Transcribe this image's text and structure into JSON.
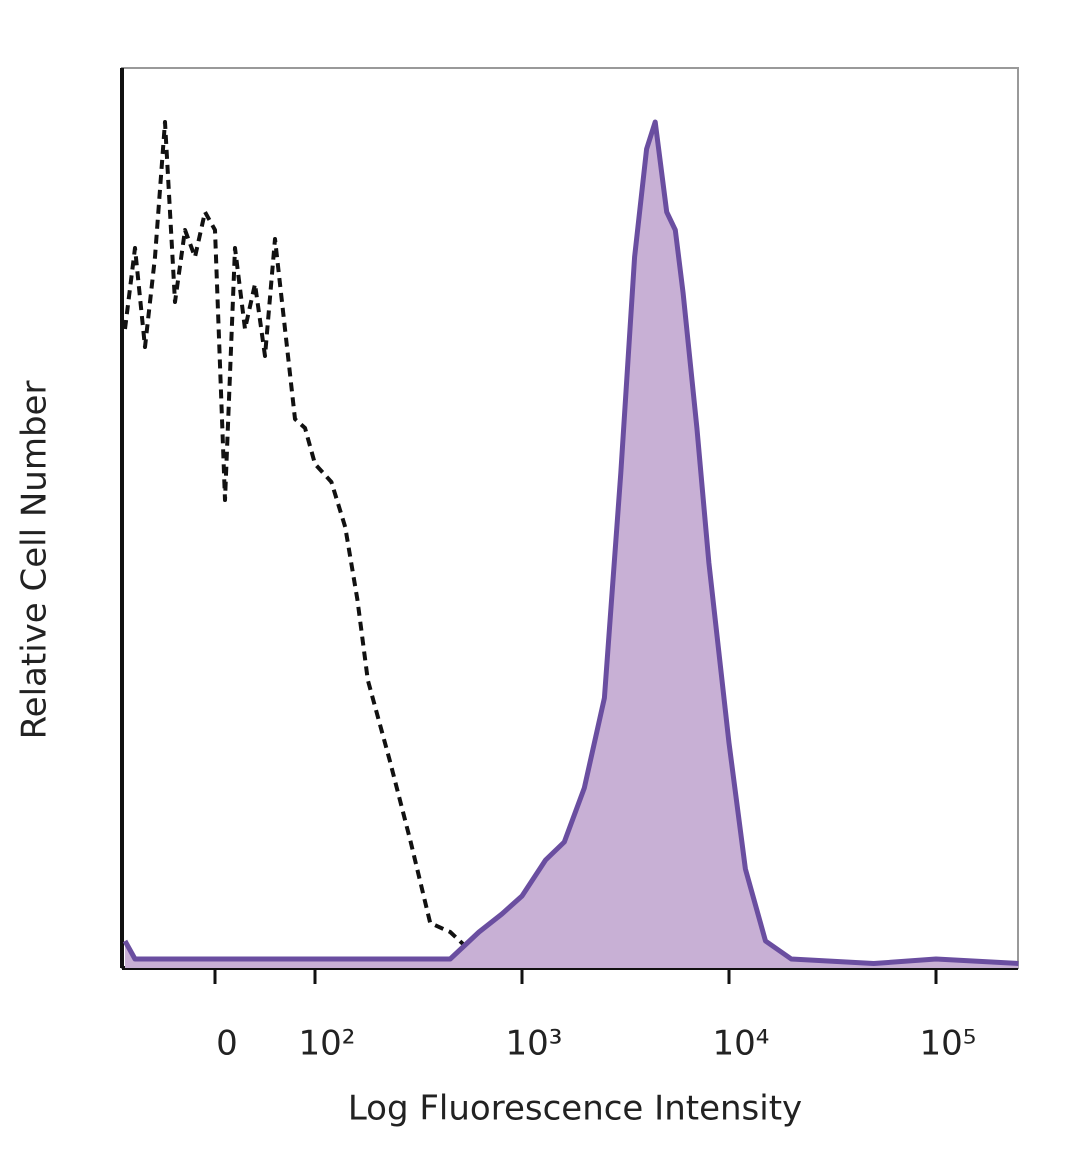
{
  "chart_data": {
    "type": "line",
    "x_label": "Log Fluorescence Intensity",
    "y_label": "Relative Cell Number",
    "x_scale": "biexponential",
    "xlim": [
      -93,
      250000
    ],
    "xticks": [
      0,
      {
        "value": 100,
        "label": "10²"
      },
      {
        "value": 1000,
        "label": "10³"
      },
      {
        "value": 10000,
        "label": "10⁴"
      },
      {
        "value": 100000,
        "label": "10⁵"
      }
    ],
    "ylim": [
      0,
      100
    ],
    "x": [
      -90,
      -80,
      -70,
      -60,
      -50,
      -40,
      -30,
      -20,
      -10,
      0,
      10,
      20,
      30,
      40,
      50,
      60,
      70,
      80,
      90,
      100,
      120,
      140,
      160,
      180,
      230,
      290,
      360,
      450,
      620,
      800,
      1000,
      1300,
      1600,
      2000,
      2500,
      3000,
      3500,
      4000,
      4400,
      5000,
      5500,
      6000,
      7000,
      8000,
      10000,
      12000,
      15000,
      20000,
      50000,
      100000,
      250000
    ],
    "series": [
      {
        "color": "#111111",
        "line_style": "dashed",
        "values": [
          71,
          80,
          69,
          79,
          94,
          74,
          82,
          79,
          84,
          82,
          52,
          80,
          71,
          76,
          68,
          81,
          71,
          61,
          60,
          56,
          54,
          49,
          41,
          32,
          23,
          14,
          5,
          4,
          1,
          0.5,
          0.5,
          0.5,
          0.5,
          0.5,
          0.5,
          0.5,
          0.5,
          0.5,
          0.5,
          0.5,
          0.5,
          0.5,
          0.5,
          0.5,
          0.5,
          0.5,
          0.5,
          0.5,
          0.5,
          0.5,
          0.5
        ]
      },
      {
        "color": "#6a4ea0",
        "fill_color": "#c8b0d5",
        "line_style": "solid",
        "values": [
          3,
          1,
          1,
          1,
          1,
          1,
          1,
          1,
          1,
          1,
          1,
          1,
          1,
          1,
          1,
          1,
          1,
          1,
          1,
          1,
          1,
          1,
          1,
          1,
          1,
          1,
          1,
          1,
          4,
          6,
          8,
          12,
          14,
          20,
          30,
          55,
          79,
          91,
          94,
          84,
          82,
          75,
          60,
          45,
          25,
          11,
          3,
          1,
          0.5,
          1,
          0.5
        ]
      }
    ]
  }
}
